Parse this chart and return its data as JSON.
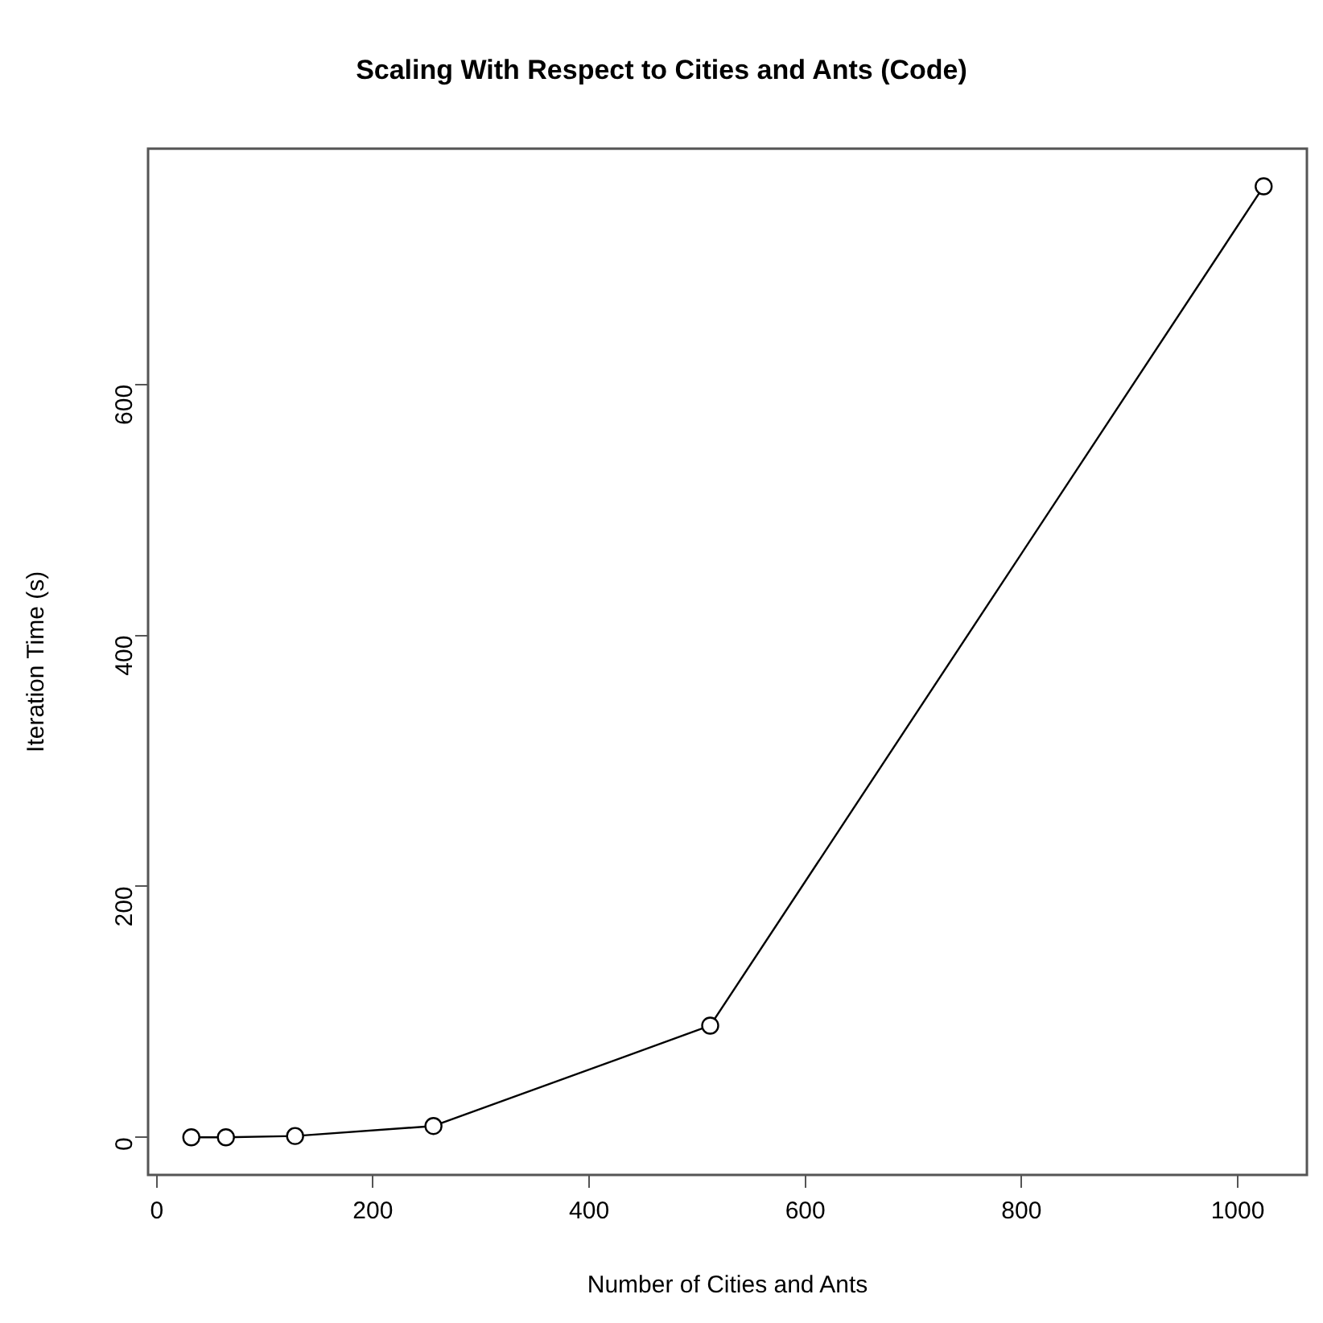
{
  "chart_data": {
    "type": "line",
    "title": "Scaling With Respect to Cities and Ants (Code)",
    "xlabel": "Number of Cities and Ants",
    "ylabel": "Iteration Time (s)",
    "x": [
      32,
      64,
      128,
      256,
      512,
      1024
    ],
    "series": [
      {
        "color": "#000000",
        "values": [
          0,
          0,
          1,
          9,
          89,
          758
        ]
      }
    ],
    "xlim": [
      -8,
      1064
    ],
    "xticks": [
      0,
      200,
      400,
      600,
      800,
      1000
    ],
    "ylim": [
      -30,
      788
    ],
    "yticks": [
      0,
      200,
      400,
      600
    ],
    "grid": false,
    "legend": false,
    "marker": "circle",
    "line_style": "solid"
  }
}
